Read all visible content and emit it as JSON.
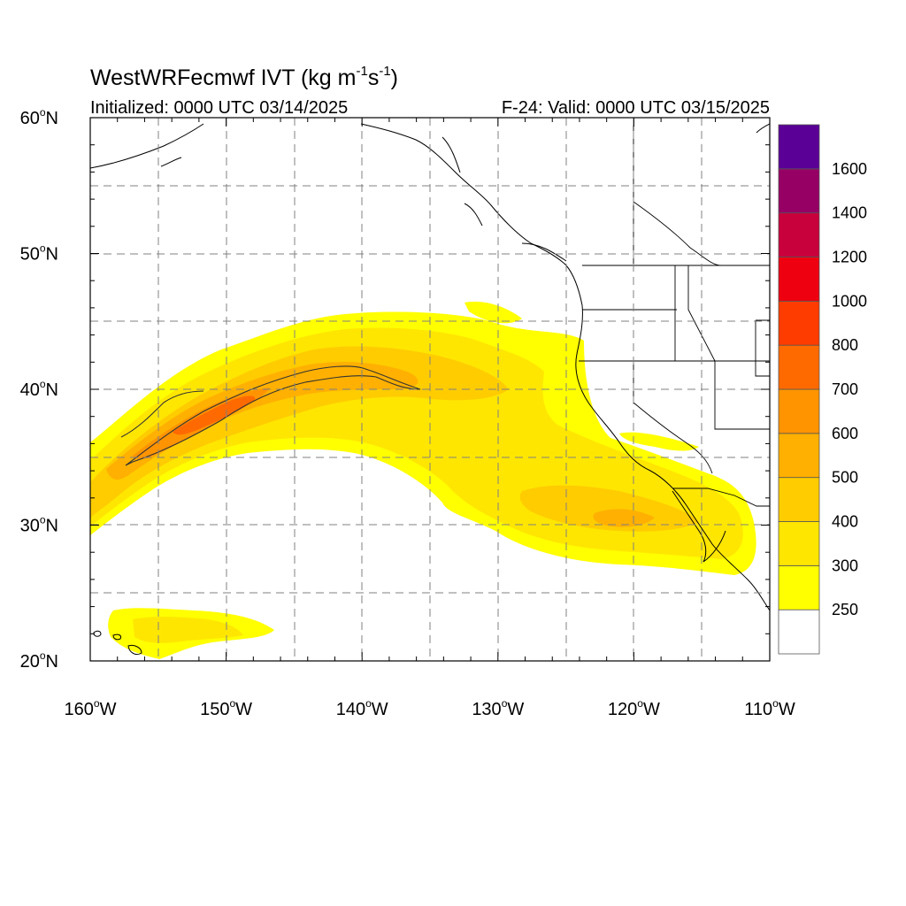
{
  "title": {
    "main": "WestWRFecmwf IVT (kg m",
    "sup1": "-1",
    "mid": "s",
    "sup2": "-1",
    "end": ")",
    "initialized": "Initialized: 0000 UTC 03/14/2025",
    "valid": "F-24: Valid: 0000 UTC 03/15/2025"
  },
  "axes": {
    "x_ticks": [
      {
        "value": -160,
        "label": "160",
        "suffix": "W"
      },
      {
        "value": -150,
        "label": "150",
        "suffix": "W"
      },
      {
        "value": -140,
        "label": "140",
        "suffix": "W"
      },
      {
        "value": -130,
        "label": "130",
        "suffix": "W"
      },
      {
        "value": -120,
        "label": "120",
        "suffix": "W"
      },
      {
        "value": -110,
        "label": "110",
        "suffix": "W"
      }
    ],
    "y_ticks": [
      {
        "value": 60,
        "label": "60",
        "suffix": "N"
      },
      {
        "value": 50,
        "label": "50",
        "suffix": "N"
      },
      {
        "value": 40,
        "label": "40",
        "suffix": "N"
      },
      {
        "value": 30,
        "label": "30",
        "suffix": "N"
      },
      {
        "value": 20,
        "label": "20",
        "suffix": "N"
      }
    ],
    "lon_range": [
      -160,
      -110
    ],
    "lat_range": [
      20,
      60
    ],
    "grid": true
  },
  "colorbar": {
    "labels": [
      "250",
      "300",
      "400",
      "500",
      "600",
      "700",
      "800",
      "1000",
      "1200",
      "1400",
      "1600"
    ],
    "colors": [
      "#ffffff",
      "#ffff00",
      "#ffe600",
      "#ffcc00",
      "#ffb000",
      "#ff9400",
      "#ff6a00",
      "#ff3c00",
      "#ee0010",
      "#c8003c",
      "#960064",
      "#5a0096"
    ]
  },
  "chart_data": {
    "type": "heatmap",
    "variable": "IVT",
    "units": "kg m-1 s-1",
    "levels": [
      250,
      300,
      400,
      500,
      600,
      700,
      800,
      1000,
      1200,
      1400,
      1600
    ],
    "x_range": [
      -160,
      -110
    ],
    "y_range": [
      20,
      60
    ],
    "features": [
      {
        "kind": "atmospheric-river",
        "approx_axis_lonlat": [
          [
            -160,
            33
          ],
          [
            -152,
            38
          ],
          [
            -145,
            41
          ],
          [
            -138,
            40
          ],
          [
            -128,
            37
          ],
          [
            -120,
            32
          ],
          [
            -114,
            29
          ]
        ],
        "peak_value_range": [
          600,
          700
        ],
        "peak_center": [
          -151,
          38.5
        ]
      },
      {
        "kind": "contour-500",
        "approx_lonlat": [
          [
            -157,
            36
          ],
          [
            -153,
            39.5
          ],
          [
            -146,
            41.5
          ],
          [
            -140,
            41.2
          ],
          [
            -136,
            40
          ],
          [
            -141,
            40.8
          ],
          [
            -147,
            40.5
          ],
          [
            -153,
            37
          ],
          [
            -157,
            34.5
          ]
        ]
      },
      {
        "kind": "moisture-patch",
        "near": "Hawaii",
        "approx_center": [
          -153,
          21.5
        ],
        "value_range": [
          250,
          300
        ]
      }
    ]
  }
}
